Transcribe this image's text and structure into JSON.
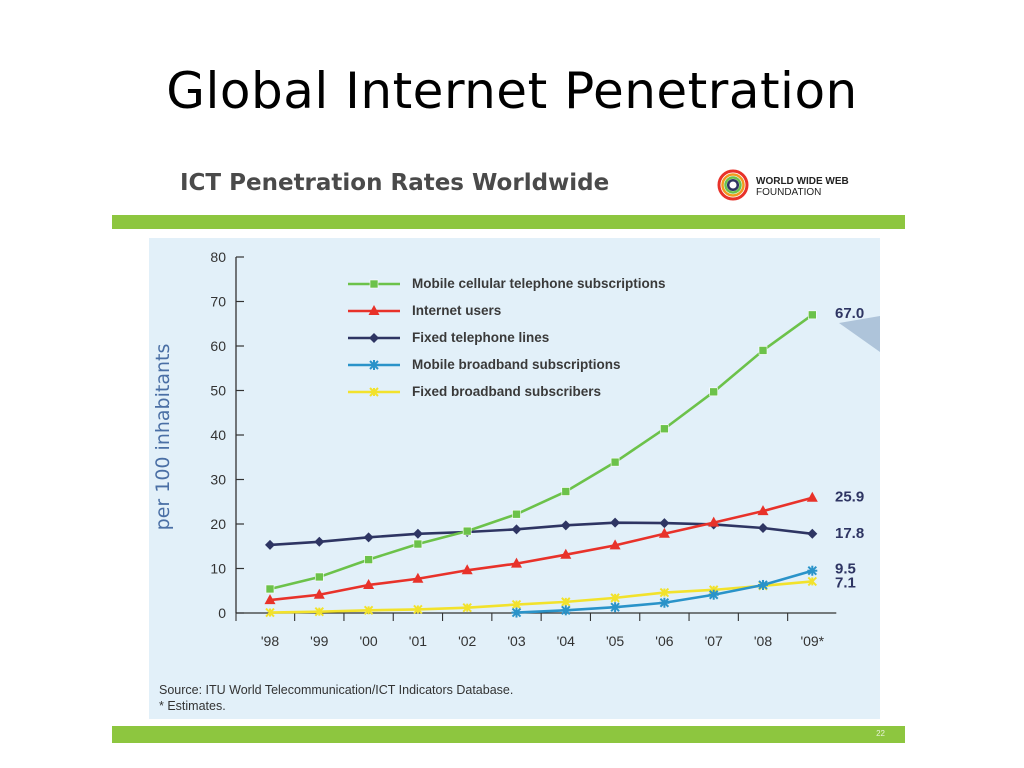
{
  "slide": {
    "title": "Global Internet Penetration",
    "page_number": "22"
  },
  "header": {
    "title": "ICT Penetration Rates Worldwide",
    "logo_line1": "WORLD WIDE WEB",
    "logo_line2": "FOUNDATION"
  },
  "source": {
    "line1": "Source: ITU World Telecommunication/ICT Indicators Database.",
    "line2": "* Estimates."
  },
  "colors": {
    "green_bar": "#8dc63f",
    "panel_bg": "#e2f0f9",
    "mobile": "#6cc24a",
    "internet": "#e8322a",
    "fixed_tel": "#2e3563",
    "mobile_bb": "#2a93c9",
    "fixed_bb": "#f2e22c"
  },
  "chart_data": {
    "type": "line",
    "title": "",
    "xlabel": "",
    "ylabel": "per 100 inhabitants",
    "categories": [
      "'98",
      "'99",
      "'00",
      "'01",
      "'02",
      "'03",
      "'04",
      "'05",
      "'06",
      "'07",
      "'08",
      "'09*"
    ],
    "yticks": [
      "0",
      "10",
      "20",
      "30",
      "40",
      "50",
      "60",
      "70",
      "80"
    ],
    "ylim": [
      0,
      80
    ],
    "grid": false,
    "legend_position": "top-left",
    "series": [
      {
        "name": "Mobile cellular telephone subscriptions",
        "marker": "square",
        "color": "#6cc24a",
        "values": [
          5.4,
          8.1,
          12.0,
          15.5,
          18.4,
          22.2,
          27.3,
          33.9,
          41.4,
          49.7,
          59.0,
          67.0
        ],
        "end_label": "67.0"
      },
      {
        "name": "Internet users",
        "marker": "triangle",
        "color": "#e8322a",
        "values": [
          2.9,
          4.1,
          6.3,
          7.7,
          9.6,
          11.1,
          13.1,
          15.2,
          17.8,
          20.3,
          22.9,
          25.9
        ],
        "end_label": "25.9"
      },
      {
        "name": "Fixed telephone lines",
        "marker": "diamond",
        "color": "#2e3563",
        "values": [
          15.3,
          16.0,
          17.0,
          17.8,
          18.2,
          18.8,
          19.7,
          20.3,
          20.2,
          19.9,
          19.1,
          17.8
        ],
        "end_label": "17.8"
      },
      {
        "name": "Mobile broadband subscriptions",
        "marker": "asterisk",
        "color": "#2a93c9",
        "values": [
          null,
          null,
          null,
          null,
          null,
          0.1,
          0.6,
          1.3,
          2.3,
          4.1,
          6.3,
          9.5
        ],
        "end_label": "9.5"
      },
      {
        "name": "Fixed broadband subscribers",
        "marker": "x",
        "color": "#f2e22c",
        "values": [
          0.1,
          0.3,
          0.6,
          0.8,
          1.2,
          1.9,
          2.5,
          3.4,
          4.6,
          5.2,
          6.1,
          7.1
        ],
        "end_label": "7.1"
      }
    ]
  }
}
